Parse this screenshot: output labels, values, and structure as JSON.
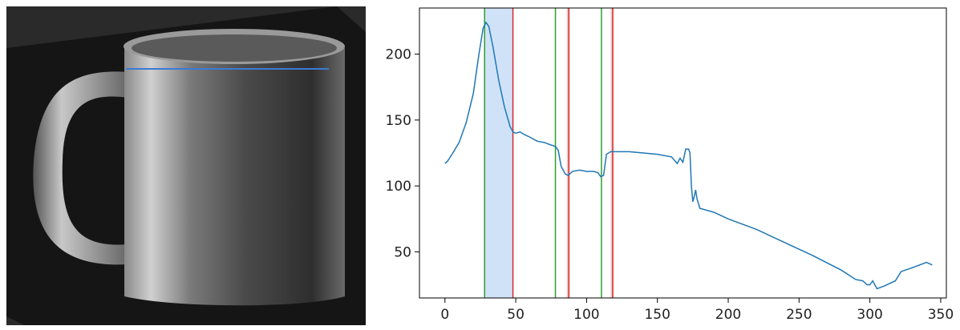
{
  "chart_data": {
    "type": "line",
    "x": [
      0,
      2,
      5,
      10,
      15,
      20,
      24,
      27,
      29,
      31,
      34,
      38,
      42,
      46,
      48,
      50,
      53,
      56,
      60,
      65,
      70,
      75,
      78,
      80,
      82,
      85,
      87,
      90,
      95,
      100,
      105,
      108,
      110,
      112,
      114,
      117,
      120,
      130,
      140,
      150,
      160,
      164,
      166,
      168,
      170,
      172,
      173,
      174,
      175,
      176,
      177,
      178,
      180,
      190,
      200,
      220,
      240,
      260,
      280,
      290,
      295,
      298,
      300,
      302,
      305,
      310,
      318,
      322,
      330,
      340,
      344
    ],
    "series": [
      {
        "color": "#1f77b4",
        "values": [
          117,
          119,
          124,
          133,
          148,
          170,
          200,
          220,
          224,
          221,
          205,
          180,
          160,
          145,
          141,
          140,
          141,
          139,
          137,
          134,
          133,
          131,
          130,
          127,
          115,
          109,
          108,
          111,
          112,
          111,
          111,
          110,
          107,
          108,
          124,
          126,
          126,
          126,
          125,
          124,
          122,
          117,
          121,
          118,
          128,
          128,
          125,
          100,
          88,
          92,
          97,
          90,
          83,
          80,
          75,
          67,
          57,
          47,
          36,
          29,
          28,
          25,
          25,
          28,
          22,
          24,
          28,
          35,
          38,
          42,
          40
        ]
      }
    ],
    "spans": [
      {
        "start": 28,
        "end": 48,
        "color": "#cfe2f7"
      },
      {
        "start": 86,
        "end": 87.5,
        "color": "#f4c9cc"
      },
      {
        "start": 117,
        "end": 118.5,
        "color": "#f4c9cc"
      }
    ],
    "vlines": [
      {
        "x": 28,
        "color": "#2ca02c"
      },
      {
        "x": 48,
        "color": "#d62728"
      },
      {
        "x": 78,
        "color": "#2ca02c"
      },
      {
        "x": 87.5,
        "color": "#d62728"
      },
      {
        "x": 110.5,
        "color": "#2ca02c"
      },
      {
        "x": 118.5,
        "color": "#d62728"
      }
    ],
    "xlim": [
      -18,
      354
    ],
    "ylim": [
      15,
      235
    ],
    "xticks": [
      0,
      50,
      100,
      150,
      200,
      250,
      300,
      350
    ],
    "yticks": [
      50,
      100,
      150,
      200
    ]
  }
}
